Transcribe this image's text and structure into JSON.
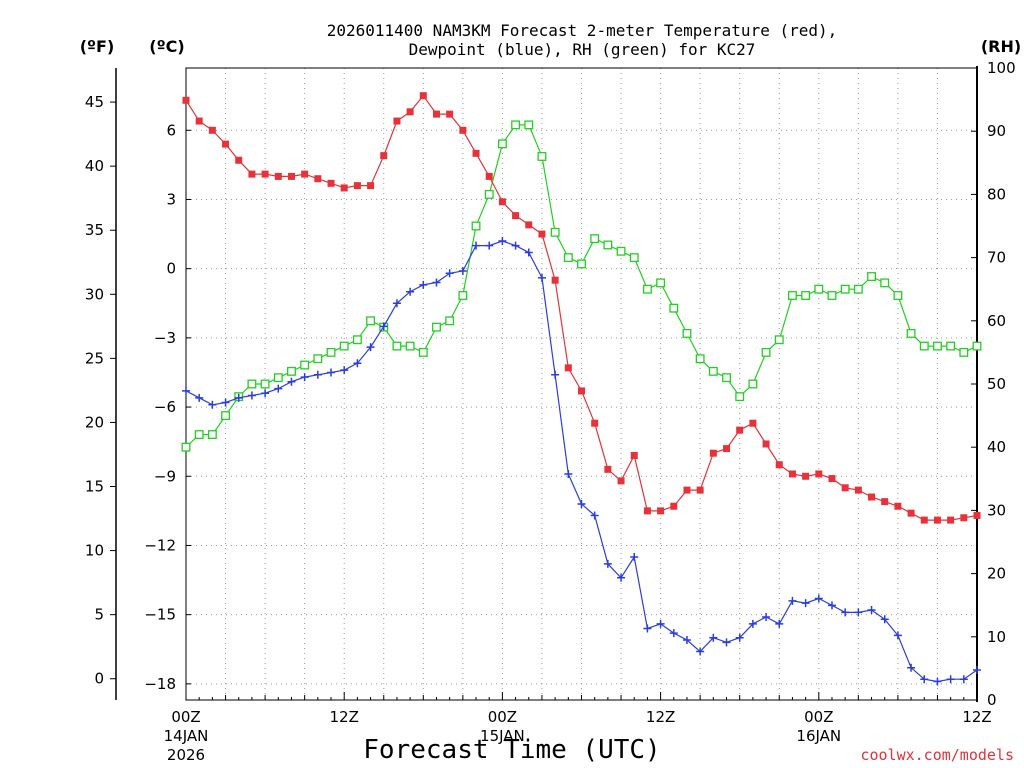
{
  "chart_data": {
    "type": "line",
    "title_line1": "2026011400 NAM3KM Forecast 2-meter Temperature (red),",
    "title_line2": "Dewpoint (blue), RH (green) for KC27",
    "unit_labels": {
      "fahrenheit": "(ºF)",
      "celsius": "(ºC)",
      "rh": "(RH)"
    },
    "xlabel": "Forecast Time (UTC)",
    "credit": "coolwx.com/models",
    "x_range_hours": [
      0,
      60
    ],
    "celsius_axis": {
      "range": [
        -18.7,
        8.7
      ],
      "ticks": [
        6,
        3,
        0,
        -3,
        -6,
        -9,
        -12,
        -15,
        -18
      ],
      "tick_labels": [
        "6",
        "3",
        "0",
        "−3",
        "−6",
        "−9",
        "−12",
        "−15",
        "−18"
      ]
    },
    "fahrenheit_axis": {
      "ticks": [
        45,
        40,
        35,
        30,
        25,
        20,
        15,
        10,
        5,
        0
      ],
      "tick_labels": [
        "45",
        "40",
        "35",
        "30",
        "25",
        "20",
        "15",
        "10",
        "5",
        "0"
      ]
    },
    "rh_axis": {
      "range": [
        0,
        100
      ],
      "ticks": [
        100,
        90,
        80,
        70,
        60,
        50,
        40,
        30,
        20,
        10,
        0
      ],
      "tick_labels": [
        "100",
        "90",
        "80",
        "70",
        "60",
        "50",
        "40",
        "30",
        "20",
        "10",
        "0"
      ]
    },
    "x_ticks": [
      {
        "hour": 0,
        "label": "00Z",
        "date1": "14JAN",
        "date2": "2026"
      },
      {
        "hour": 12,
        "label": "12Z",
        "date1": "",
        "date2": ""
      },
      {
        "hour": 24,
        "label": "00Z",
        "date1": "15JAN",
        "date2": ""
      },
      {
        "hour": 36,
        "label": "12Z",
        "date1": "",
        "date2": ""
      },
      {
        "hour": 48,
        "label": "00Z",
        "date1": "16JAN",
        "date2": ""
      },
      {
        "hour": 60,
        "label": "12Z",
        "date1": "",
        "date2": ""
      }
    ],
    "series": [
      {
        "name": "2-meter Temperature (°C)",
        "color": "#e8323a",
        "marker": "filled-square",
        "axis": "celsius",
        "values": [
          7.3,
          6.4,
          6.0,
          5.4,
          4.7,
          4.1,
          4.1,
          4.0,
          4.0,
          4.1,
          3.9,
          3.7,
          3.5,
          3.6,
          3.6,
          4.9,
          6.4,
          6.8,
          7.5,
          6.7,
          6.7,
          6.0,
          5.0,
          4.0,
          2.9,
          2.3,
          1.9,
          1.5,
          -0.5,
          -4.3,
          -5.3,
          -6.7,
          -8.7,
          -9.2,
          -8.1,
          -10.5,
          -10.5,
          -10.3,
          -9.6,
          -9.6,
          -8.0,
          -7.8,
          -7.0,
          -6.7,
          -7.6,
          -8.5,
          -8.9,
          -9.0,
          -8.9,
          -9.1,
          -9.5,
          -9.6,
          -9.9,
          -10.1,
          -10.3,
          -10.6,
          -10.9,
          -10.9,
          -10.9,
          -10.8,
          -10.7
        ]
      },
      {
        "name": "Dewpoint (°C)",
        "color": "#2a3de0",
        "marker": "plus",
        "axis": "celsius",
        "values": [
          -5.3,
          -5.6,
          -5.9,
          -5.8,
          -5.6,
          -5.5,
          -5.4,
          -5.2,
          -4.9,
          -4.7,
          -4.6,
          -4.5,
          -4.4,
          -4.1,
          -3.4,
          -2.5,
          -1.5,
          -1.0,
          -0.7,
          -0.6,
          -0.2,
          -0.1,
          1.0,
          1.0,
          1.2,
          1.0,
          0.7,
          -0.4,
          -4.6,
          -8.9,
          -10.2,
          -10.7,
          -12.8,
          -13.4,
          -12.5,
          -15.6,
          -15.4,
          -15.8,
          -16.1,
          -16.6,
          -16.0,
          -16.2,
          -16.0,
          -15.4,
          -15.1,
          -15.4,
          -14.4,
          -14.5,
          -14.3,
          -14.6,
          -14.9,
          -14.9,
          -14.8,
          -15.2,
          -15.9,
          -17.3,
          -17.8,
          -17.9,
          -17.8,
          -17.8,
          -17.4
        ]
      },
      {
        "name": "RH (%)",
        "color": "#22d022",
        "marker": "open-square",
        "axis": "rh",
        "values": [
          40,
          42,
          42,
          45,
          48,
          50,
          50,
          51,
          52,
          53,
          54,
          55,
          56,
          57,
          60,
          59,
          56,
          56,
          55,
          59,
          60,
          64,
          75,
          80,
          88,
          91,
          91,
          86,
          74,
          70,
          69,
          73,
          72,
          71,
          70,
          65,
          66,
          62,
          58,
          54,
          52,
          51,
          48,
          50,
          55,
          57,
          64,
          64,
          65,
          64,
          65,
          65,
          67,
          66,
          64,
          58,
          56,
          56,
          56,
          55,
          56
        ]
      }
    ]
  }
}
